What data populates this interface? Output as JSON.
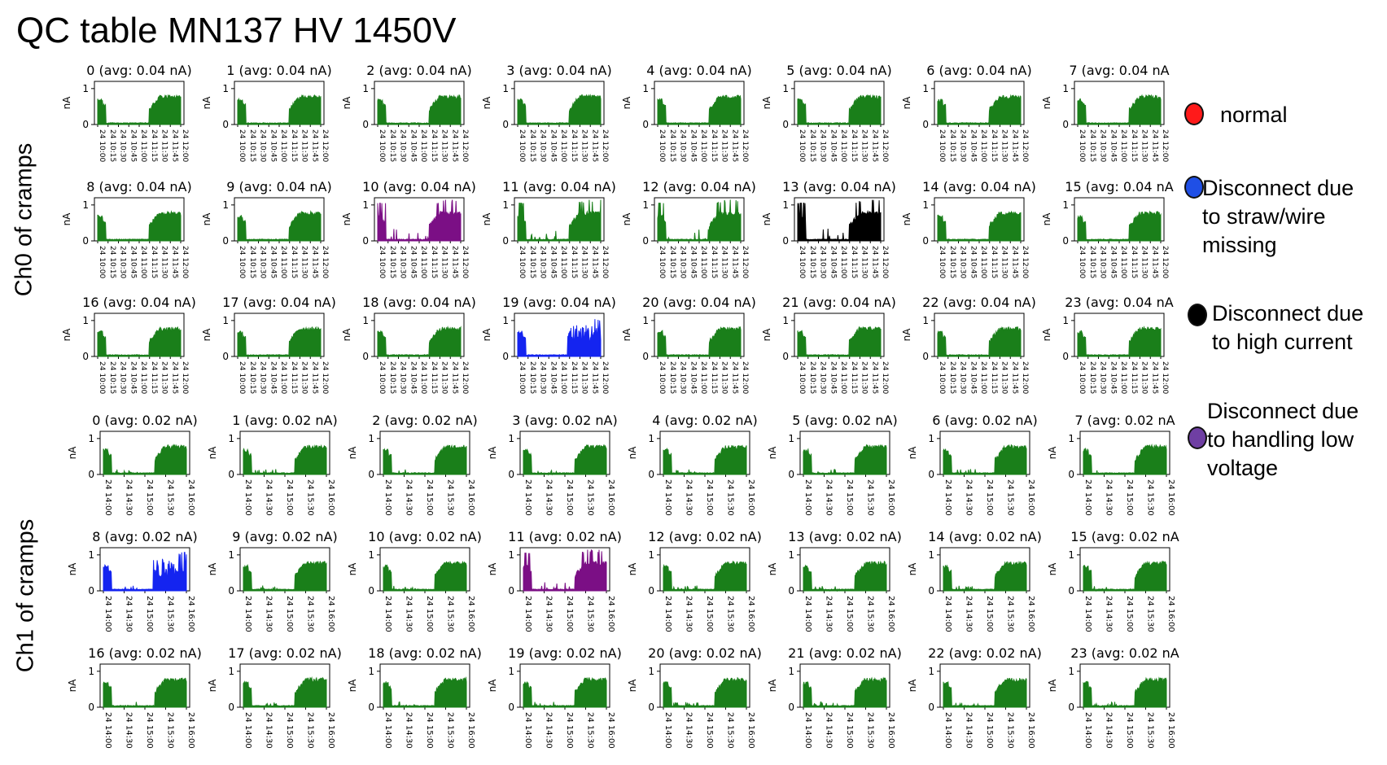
{
  "title": "QC table    MN137 HV 1450V",
  "row_labels": [
    "Ch0 of cramps",
    "Ch1 of cramps"
  ],
  "colors": {
    "green": "#1a7f1a",
    "purple": "#7b0f85",
    "black": "#000000",
    "blue": "#1424f0"
  },
  "legend": [
    {
      "label": "normal",
      "color": "#ff1a1a",
      "icon": "red-dot-icon"
    },
    {
      "label": "Disconnect due\nto straw/wire\nmissing",
      "color": "#1f4fe6",
      "icon": "blue-dot-icon"
    },
    {
      "label": "Disconnect due\nto high current",
      "color": "#000000",
      "icon": "black-dot-icon"
    },
    {
      "label": "Disconnect due\nto handling low\nvoltage",
      "color": "#6f3fa3",
      "icon": "purple-dot-icon"
    }
  ],
  "chart_data": [
    {
      "type": "line",
      "group": "Ch0 of cramps",
      "ylabel": "nA",
      "yticks": [
        0,
        1
      ],
      "ylim": [
        0,
        1.2
      ],
      "xticks": [
        "24 10:00",
        "24 10:15",
        "24 10:30",
        "24 10:45",
        "24 11:00",
        "24 11:15",
        "24 11:30",
        "24 11:45",
        "24 12:00"
      ],
      "panels": [
        {
          "title": "0 (avg: 0.04 nA)",
          "color": "green",
          "pattern": "normal"
        },
        {
          "title": "1 (avg: 0.04 nA)",
          "color": "green",
          "pattern": "normal"
        },
        {
          "title": "2 (avg: 0.04 nA)",
          "color": "green",
          "pattern": "normal"
        },
        {
          "title": "3 (avg: 0.04 nA)",
          "color": "green",
          "pattern": "normal"
        },
        {
          "title": "4 (avg: 0.04 nA)",
          "color": "green",
          "pattern": "normal"
        },
        {
          "title": "5 (avg: 0.04 nA)",
          "color": "green",
          "pattern": "normal"
        },
        {
          "title": "6 (avg: 0.04 nA)",
          "color": "green",
          "pattern": "normal"
        },
        {
          "title": "7 (avg: 0.04 nA",
          "color": "green",
          "pattern": "normal"
        },
        {
          "title": "8 (avg: 0.04 nA)",
          "color": "green",
          "pattern": "normal"
        },
        {
          "title": "9 (avg: 0.04 nA)",
          "color": "green",
          "pattern": "normal"
        },
        {
          "title": "10 (avg: 0.04 nA)",
          "color": "purple",
          "pattern": "spiky"
        },
        {
          "title": "11 (avg: 0.04 nA)",
          "color": "green",
          "pattern": "spiky"
        },
        {
          "title": "12 (avg: 0.04 nA)",
          "color": "green",
          "pattern": "spiky"
        },
        {
          "title": "13 (avg: 0.04 nA)",
          "color": "black",
          "pattern": "spiky"
        },
        {
          "title": "14 (avg: 0.04 nA)",
          "color": "green",
          "pattern": "normal"
        },
        {
          "title": "15 (avg: 0.04 nA",
          "color": "green",
          "pattern": "normal"
        },
        {
          "title": "16 (avg: 0.04 nA)",
          "color": "green",
          "pattern": "normal"
        },
        {
          "title": "17 (avg: 0.04 nA)",
          "color": "green",
          "pattern": "normal"
        },
        {
          "title": "18 (avg: 0.04 nA)",
          "color": "green",
          "pattern": "normal"
        },
        {
          "title": "19 (avg: 0.04 nA)",
          "color": "blue",
          "pattern": "noisy"
        },
        {
          "title": "20 (avg: 0.04 nA)",
          "color": "green",
          "pattern": "normal"
        },
        {
          "title": "21 (avg: 0.04 nA)",
          "color": "green",
          "pattern": "normal"
        },
        {
          "title": "22 (avg: 0.04 nA)",
          "color": "green",
          "pattern": "normal"
        },
        {
          "title": "23 (avg: 0.04 nA",
          "color": "green",
          "pattern": "normal"
        }
      ]
    },
    {
      "type": "line",
      "group": "Ch1 of cramps",
      "ylabel": "nA",
      "yticks": [
        0,
        1
      ],
      "ylim": [
        0,
        1.2
      ],
      "xticks": [
        "24 14:00",
        "24 14:30",
        "24 15:00",
        "24 15:30",
        "24 16:00"
      ],
      "panels": [
        {
          "title": "0 (avg: 0.02 nA)",
          "color": "green",
          "pattern": "normal"
        },
        {
          "title": "1 (avg: 0.02 nA)",
          "color": "green",
          "pattern": "normal"
        },
        {
          "title": "2 (avg: 0.02 nA)",
          "color": "green",
          "pattern": "normal"
        },
        {
          "title": "3 (avg: 0.02 nA)",
          "color": "green",
          "pattern": "normal"
        },
        {
          "title": "4 (avg: 0.02 nA)",
          "color": "green",
          "pattern": "normal"
        },
        {
          "title": "5 (avg: 0.02 nA)",
          "color": "green",
          "pattern": "normal"
        },
        {
          "title": "6 (avg: 0.02 nA)",
          "color": "green",
          "pattern": "normal"
        },
        {
          "title": "7 (avg: 0.02 nA",
          "color": "green",
          "pattern": "normal"
        },
        {
          "title": "8 (avg: 0.02 nA)",
          "color": "blue",
          "pattern": "noisy"
        },
        {
          "title": "9 (avg: 0.02 nA)",
          "color": "green",
          "pattern": "normal"
        },
        {
          "title": "10 (avg: 0.02 nA)",
          "color": "green",
          "pattern": "normal"
        },
        {
          "title": "11 (avg: 0.02 nA)",
          "color": "purple",
          "pattern": "spiky"
        },
        {
          "title": "12 (avg: 0.02 nA)",
          "color": "green",
          "pattern": "normal"
        },
        {
          "title": "13 (avg: 0.02 nA)",
          "color": "green",
          "pattern": "normal"
        },
        {
          "title": "14 (avg: 0.02 nA)",
          "color": "green",
          "pattern": "normal"
        },
        {
          "title": "15 (avg: 0.02 nA",
          "color": "green",
          "pattern": "normal"
        },
        {
          "title": "16 (avg: 0.02 nA)",
          "color": "green",
          "pattern": "normal"
        },
        {
          "title": "17 (avg: 0.02 nA)",
          "color": "green",
          "pattern": "normal"
        },
        {
          "title": "18 (avg: 0.02 nA)",
          "color": "green",
          "pattern": "normal"
        },
        {
          "title": "19 (avg: 0.02 nA)",
          "color": "green",
          "pattern": "normal"
        },
        {
          "title": "20 (avg: 0.02 nA)",
          "color": "green",
          "pattern": "normal"
        },
        {
          "title": "21 (avg: 0.02 nA)",
          "color": "green",
          "pattern": "normal"
        },
        {
          "title": "22 (avg: 0.02 nA)",
          "color": "green",
          "pattern": "normal"
        },
        {
          "title": "23 (avg: 0.02 nA",
          "color": "green",
          "pattern": "normal"
        }
      ]
    }
  ]
}
